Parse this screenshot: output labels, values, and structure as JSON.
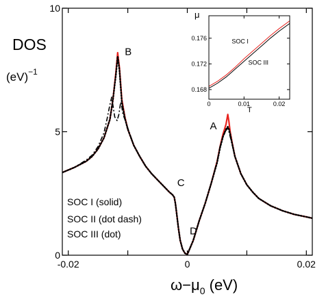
{
  "chart_data": [
    {
      "type": "line",
      "ylabel_main": "DOS",
      "ylabel_unit_base": "(eV)",
      "ylabel_unit_sup": "−1",
      "xlabel_pre": "ω−μ",
      "xlabel_sub": "0",
      "xlabel_post": " (eV)",
      "xlim": [
        -0.021,
        0.021
      ],
      "ylim": [
        0,
        10
      ],
      "x_ticks": [
        -0.02,
        -0.01,
        0,
        0.01,
        0.02
      ],
      "x_tick_labels": [
        "-0.02",
        "",
        "0",
        "",
        "0.02"
      ],
      "y_ticks": [
        0,
        5,
        10
      ],
      "y_tick_labels": [
        "0",
        "5",
        "10"
      ],
      "annotations": [
        {
          "label": "B",
          "x": -0.0105,
          "y": 8.1
        },
        {
          "label": "A",
          "x": 0.0038,
          "y": 5.1
        },
        {
          "label": "C",
          "x": -0.0017,
          "y": 2.8
        },
        {
          "label": "D",
          "x": 0.0004,
          "y": 0.85
        }
      ],
      "legend_lines": [
        "SOC I (solid)",
        "SOC II (dot dash)",
        "SOC III (dot)"
      ],
      "legend_position": "lower-left",
      "series": [
        {
          "name": "SOC I (solid)",
          "style": "solid",
          "color": "#e8231e",
          "x": [
            -0.021,
            -0.019,
            -0.017,
            -0.016,
            -0.015,
            -0.014,
            -0.013,
            -0.0125,
            -0.012,
            -0.0117,
            -0.0114,
            -0.011,
            -0.0105,
            -0.01,
            -0.009,
            -0.008,
            -0.007,
            -0.006,
            -0.005,
            -0.004,
            -0.003,
            -0.0025,
            -0.0022,
            -0.002,
            -0.0018,
            -0.0015,
            -0.0012,
            -0.0008,
            -0.0004,
            0,
            0.001,
            0.002,
            0.003,
            0.004,
            0.005,
            0.0055,
            0.006,
            0.0065,
            0.0068,
            0.007,
            0.0072,
            0.0075,
            0.008,
            0.009,
            0.01,
            0.011,
            0.012,
            0.013,
            0.014,
            0.015,
            0.016,
            0.018,
            0.02,
            0.021
          ],
          "y": [
            3.35,
            3.55,
            3.8,
            4.0,
            4.3,
            4.75,
            5.5,
            6.3,
            7.4,
            8.2,
            7.6,
            6.3,
            5.6,
            5.1,
            4.45,
            4.0,
            3.6,
            3.3,
            3.05,
            2.8,
            2.55,
            2.45,
            2.35,
            2.1,
            1.7,
            1.1,
            0.6,
            0.25,
            0.08,
            0.03,
            0.6,
            1.4,
            2.1,
            2.9,
            3.8,
            4.4,
            4.9,
            5.3,
            5.7,
            5.4,
            5.0,
            4.6,
            4.0,
            3.3,
            2.85,
            2.55,
            2.3,
            2.15,
            2.0,
            1.9,
            1.8,
            1.65,
            1.55,
            1.5
          ]
        },
        {
          "name": "SOC II (dot dash)",
          "style": "dashdot",
          "color": "#000000",
          "x": [
            -0.021,
            -0.019,
            -0.017,
            -0.016,
            -0.015,
            -0.014,
            -0.0135,
            -0.013,
            -0.0127,
            -0.0122,
            -0.0118,
            -0.0115,
            -0.0112,
            -0.011,
            -0.0108,
            -0.0105,
            -0.01,
            -0.009,
            -0.008,
            -0.007,
            -0.006,
            -0.005,
            -0.004,
            -0.003,
            -0.0025,
            -0.0022,
            -0.002,
            -0.0018,
            -0.0015,
            -0.0012,
            -0.0008,
            -0.0004,
            0,
            0.001,
            0.002,
            0.003,
            0.004,
            0.005,
            0.0055,
            0.006,
            0.0065,
            0.0068,
            0.007,
            0.0072,
            0.0075,
            0.008,
            0.009,
            0.01,
            0.011,
            0.012,
            0.013,
            0.014,
            0.015,
            0.016,
            0.018,
            0.02,
            0.021
          ],
          "y": [
            3.35,
            3.55,
            3.85,
            4.05,
            4.4,
            4.95,
            5.5,
            6.1,
            6.4,
            5.6,
            5.45,
            5.7,
            6.2,
            6.0,
            5.7,
            5.5,
            5.15,
            4.45,
            4.0,
            3.6,
            3.3,
            3.05,
            2.8,
            2.55,
            2.45,
            2.35,
            2.1,
            1.7,
            1.1,
            0.6,
            0.25,
            0.08,
            0.03,
            0.6,
            1.4,
            2.1,
            2.9,
            3.8,
            4.4,
            4.8,
            5.05,
            5.15,
            5.0,
            4.8,
            4.5,
            4.0,
            3.3,
            2.85,
            2.55,
            2.3,
            2.15,
            2.0,
            1.9,
            1.8,
            1.65,
            1.55,
            1.5
          ]
        },
        {
          "name": "SOC III (dot)",
          "style": "dotted",
          "color": "#000000",
          "x": [
            -0.021,
            -0.019,
            -0.017,
            -0.016,
            -0.015,
            -0.014,
            -0.013,
            -0.0125,
            -0.012,
            -0.0117,
            -0.0114,
            -0.011,
            -0.0105,
            -0.01,
            -0.009,
            -0.008,
            -0.007,
            -0.006,
            -0.005,
            -0.004,
            -0.003,
            -0.0025,
            -0.0022,
            -0.002,
            -0.0018,
            -0.0015,
            -0.0012,
            -0.0008,
            -0.0004,
            0,
            0.001,
            0.002,
            0.003,
            0.004,
            0.005,
            0.0055,
            0.006,
            0.0065,
            0.0068,
            0.007,
            0.0072,
            0.0075,
            0.008,
            0.009,
            0.01,
            0.011,
            0.012,
            0.013,
            0.014,
            0.015,
            0.016,
            0.018,
            0.02,
            0.021
          ],
          "y": [
            3.35,
            3.55,
            3.8,
            4.0,
            4.3,
            4.75,
            5.5,
            6.3,
            7.3,
            8.05,
            7.5,
            6.2,
            5.55,
            5.1,
            4.45,
            4.0,
            3.6,
            3.3,
            3.05,
            2.8,
            2.55,
            2.45,
            2.35,
            2.1,
            1.7,
            1.1,
            0.6,
            0.25,
            0.08,
            0.03,
            0.6,
            1.4,
            2.1,
            2.9,
            3.75,
            4.35,
            4.8,
            5.1,
            5.2,
            5.1,
            4.9,
            4.55,
            4.0,
            3.3,
            2.85,
            2.55,
            2.3,
            2.15,
            2.0,
            1.9,
            1.8,
            1.65,
            1.55,
            1.5
          ]
        }
      ]
    },
    {
      "type": "line",
      "inset": true,
      "ylabel": "μ",
      "xlabel": "T",
      "xlim": [
        0,
        0.023
      ],
      "ylim": [
        0.1665,
        0.1795
      ],
      "x_ticks": [
        0,
        0.01,
        0.02
      ],
      "x_tick_labels": [
        "0",
        "0.01",
        "0.02"
      ],
      "y_ticks": [
        0.168,
        0.172,
        0.176
      ],
      "y_tick_labels": [
        "0.168",
        "0.172",
        "0.176"
      ],
      "annotations": [
        {
          "label": "SOC I",
          "x": 0.0065,
          "y": 0.1752
        },
        {
          "label": "SOC III",
          "x": 0.0112,
          "y": 0.1719
        }
      ],
      "series": [
        {
          "name": "SOC I",
          "color": "#e8231e",
          "x": [
            0,
            0.0025,
            0.005,
            0.0075,
            0.01,
            0.0125,
            0.015,
            0.0175,
            0.02,
            0.023
          ],
          "y": [
            0.1685,
            0.1693,
            0.1703,
            0.1715,
            0.1728,
            0.174,
            0.1752,
            0.1764,
            0.1775,
            0.1787
          ]
        },
        {
          "name": "SOC III",
          "color": "#000000",
          "x": [
            0,
            0.0025,
            0.005,
            0.0075,
            0.01,
            0.0125,
            0.015,
            0.0175,
            0.02,
            0.023
          ],
          "y": [
            0.1682,
            0.169,
            0.17,
            0.1712,
            0.1724,
            0.1736,
            0.1748,
            0.176,
            0.1771,
            0.1783
          ]
        }
      ]
    }
  ]
}
